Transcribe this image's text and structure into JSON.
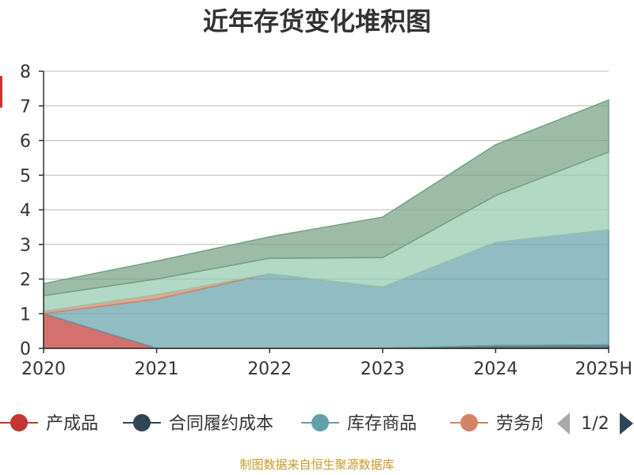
{
  "title": "近年存货变化堆积图",
  "footer": "制图数据来自恒生聚源数据库",
  "colors": {
    "title": "#333333",
    "axis": "#333333",
    "grid": "#bbbbbb",
    "footer": "#c79a2a",
    "ylabel": "#cc3333"
  },
  "legend": {
    "page": "1/2",
    "prev_icon": "triangle-left-icon",
    "next_icon": "triangle-right-icon"
  },
  "chart_data": {
    "type": "area",
    "stacked": true,
    "title": "近年存货变化堆积图",
    "x": [
      "2020",
      "2021",
      "2022",
      "2023",
      "2024",
      "2025H"
    ],
    "ylabel": "",
    "ylim": [
      0,
      8
    ],
    "yticks": [
      0,
      1,
      2,
      3,
      4,
      5,
      6,
      7,
      8
    ],
    "grid": true,
    "legend_position": "bottom",
    "series": [
      {
        "name": "产成品",
        "color": "#c23531",
        "values": [
          1.0,
          0.0,
          0.0,
          0.0,
          0.0,
          0.0
        ]
      },
      {
        "name": "合同履约成本",
        "color": "#2f4554",
        "values": [
          0.0,
          0.0,
          0.0,
          0.0,
          0.08,
          0.1
        ]
      },
      {
        "name": "库存商品",
        "color": "#61a0a8",
        "values": [
          0.0,
          1.42,
          2.15,
          1.77,
          2.98,
          3.32
        ]
      },
      {
        "name": "劳务成",
        "color": "#d48265",
        "values": [
          0.07,
          0.13,
          0.0,
          0.0,
          0.0,
          0.0
        ]
      },
      {
        "name": "",
        "color": "#91c7ae",
        "values": [
          0.45,
          0.45,
          0.45,
          0.85,
          1.35,
          2.25
        ]
      },
      {
        "name": "",
        "color": "#749f83",
        "values": [
          0.35,
          0.52,
          0.62,
          1.17,
          1.47,
          1.5
        ]
      }
    ],
    "legend_visible": [
      "产成品",
      "合同履约成本",
      "库存商品",
      "劳务成"
    ]
  }
}
